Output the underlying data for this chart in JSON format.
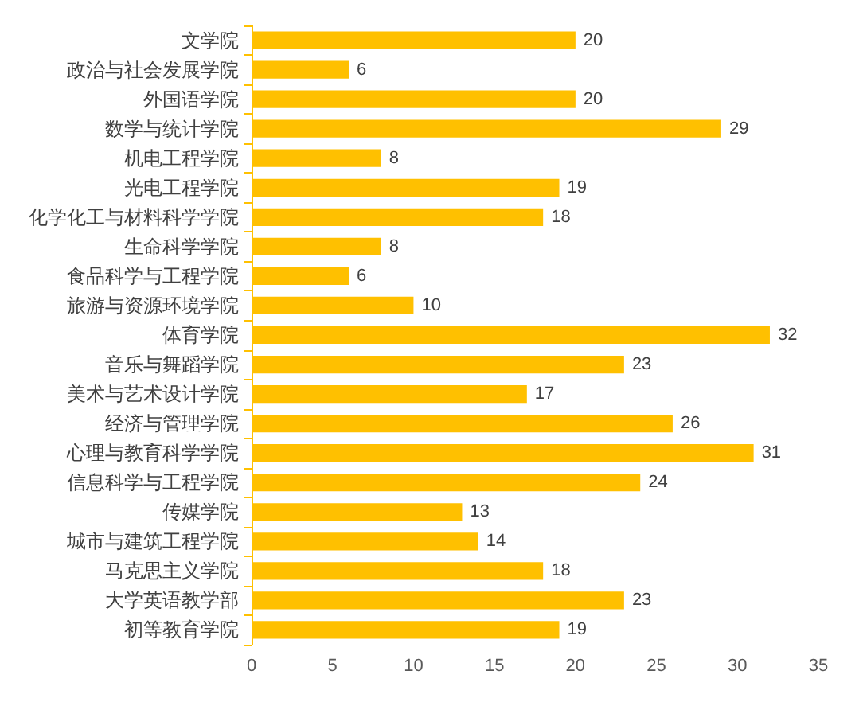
{
  "chart_data": {
    "type": "bar",
    "orientation": "horizontal",
    "categories": [
      "文学院",
      "政治与社会发展学院",
      "外国语学院",
      "数学与统计学院",
      "机电工程学院",
      "光电工程学院",
      "化学化工与材料科学学院",
      "生命科学学院",
      "食品科学与工程学院",
      "旅游与资源环境学院",
      "体育学院",
      "音乐与舞蹈学院",
      "美术与艺术设计学院",
      "经济与管理学院",
      "心理与教育科学学院",
      "信息科学与工程学院",
      "传媒学院",
      "城市与建筑工程学院",
      "马克思主义学院",
      "大学英语教学部",
      "初等教育学院"
    ],
    "values": [
      20,
      6,
      20,
      29,
      8,
      19,
      18,
      8,
      6,
      10,
      32,
      23,
      17,
      26,
      31,
      24,
      13,
      14,
      18,
      23,
      19
    ],
    "color": "#ffc000",
    "xlim": [
      0,
      35
    ],
    "xticks": [
      0,
      5,
      10,
      15,
      20,
      25,
      30,
      35
    ],
    "grid": false,
    "data_labels": true
  }
}
